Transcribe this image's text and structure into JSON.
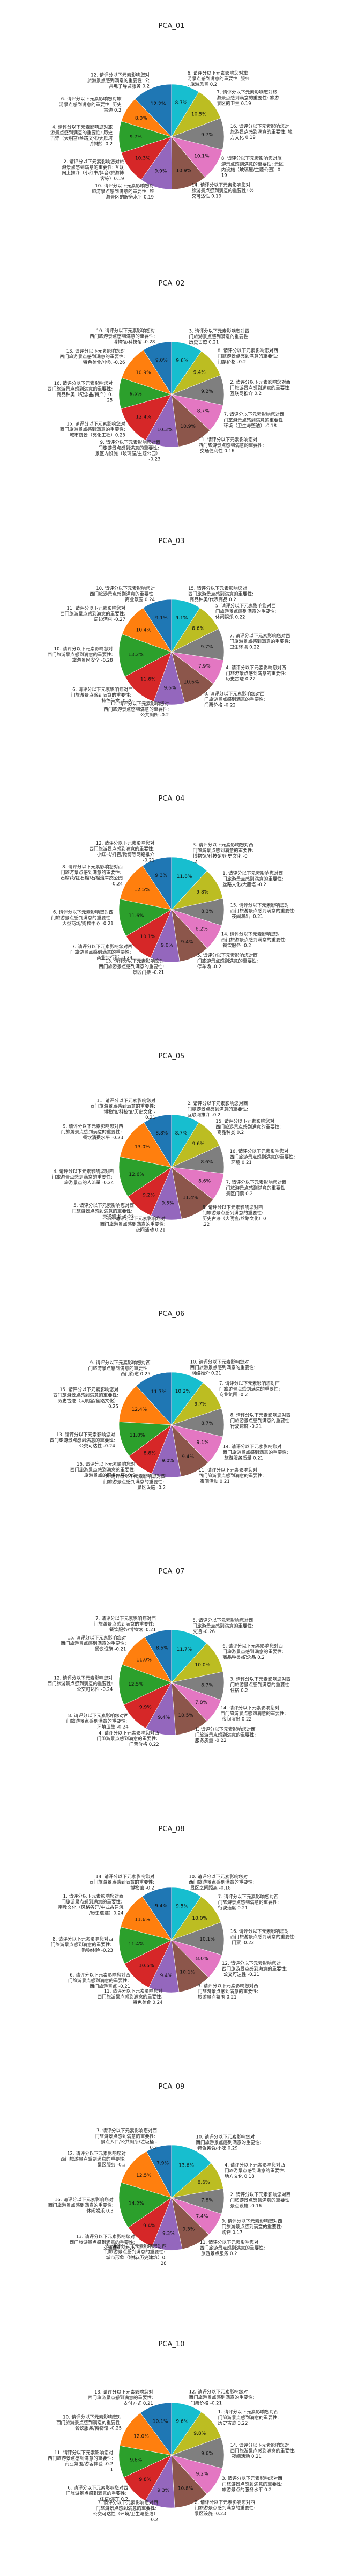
{
  "chart_data": [
    {
      "type": "pie",
      "title": "PCA_01",
      "values": [
        12.2,
        8.0,
        9.7,
        10.3,
        9.9,
        10.9,
        10.1,
        9.7,
        10.5,
        8.7
      ],
      "colors": [
        "#1f77b4",
        "#ff7f0e",
        "#2ca02c",
        "#d62728",
        "#9467bd",
        "#8c564b",
        "#e377c2",
        "#7f7f7f",
        "#bcbd22",
        "#17becf"
      ],
      "labels": [
        "12. 请评分以下元素影响您对旅游景点感到满意的重要性: 公共电子导览服务 0.2",
        "6. 请评分以下元素影响您对旅游景点感到满意的重要性: 历史古迹 0.2",
        "4. 请评分以下元素影响您对旅游景点感到满意的重要性: 历史古迹（大明宫/丝路文化/大雁塔/钟楼）0.2",
        "2. 请评分以下元素影响您对旅游景点感到满意的重要性: 互联网上推介（小红书/抖音/旅游博客等）0.19",
        "10. 请评分以下元素影响您对旅游景点感到满意的重要性: 旅游景区的服务水平 0.19",
        "14. 请评分以下元素影响您对旅游景点感到满意的重要性: 公交可达性 0.19",
        "8. 请评分以下元素影响您对旅游景点感到满意的重要性: 景区内设施（玻璃屋/主题公园）0.19",
        "16. 请评分以下元素影响您对旅游景点感到满意的重要性: 地方文化 0.19",
        "7. 请评分以下元素影响您对旅游景点感到满意的重要性: 旅游景区的卫生 0.19",
        "6. 请评分以下元素影响您对旅游景点感到满意的重要性: 服务, 旅游风景 0.2"
      ]
    },
    {
      "type": "pie",
      "title": "PCA_02",
      "values": [
        9.0,
        10.9,
        9.5,
        12.4,
        10.3,
        10.9,
        8.7,
        9.2,
        9.4,
        9.6
      ],
      "colors": [
        "#1f77b4",
        "#ff7f0e",
        "#2ca02c",
        "#d62728",
        "#9467bd",
        "#8c564b",
        "#e377c2",
        "#7f7f7f",
        "#bcbd22",
        "#17becf"
      ],
      "labels": [
        "10. 请评分以下元素影响您对西门旅游景点感到满意的重要性: 博物馆/科技馆 -0.28",
        "13. 请评分以下元素影响您对西门旅游景点感到满意的重要性: 特色美食/小吃 -0.26",
        "16. 请评分以下元素影响您对西门旅游景点感到满意的重要性: 商品种类（纪念品/特产）0.25",
        "15. 请评分以下元素影响您对西门旅游景点感到满意的重要性: 城市夜景（亮化工程）0.23",
        "9. 请评分以下元素影响您对西门旅游景点感到满意的重要性: 景区内设施（玻璃屋/主题公园）-0.23",
        "11. 请评分以下元素影响您对西门旅游景点感到满意的重要性: 交通便利性 0.16",
        "7. 请评分以下元素影响您对西门旅游景点感到满意的重要性: 环境（卫生与整洁）-0.18",
        "2. 请评分以下元素影响您对西门旅游景点感到满意的重要性: 互联网推介 0.2",
        "8. 请评分以下元素影响您对西门旅游景点感到满意的重要性: 门票价格 -0.2",
        "3. 请评分以下元素影响您对西门旅游景点感到满意的重要性: 历史古迹 0.21"
      ]
    },
    {
      "type": "pie",
      "title": "PCA_03",
      "values": [
        9.1,
        10.4,
        13.2,
        11.8,
        9.6,
        10.6,
        7.9,
        9.7,
        8.6,
        9.1
      ],
      "colors": [
        "#1f77b4",
        "#ff7f0e",
        "#2ca02c",
        "#d62728",
        "#9467bd",
        "#8c564b",
        "#e377c2",
        "#7f7f7f",
        "#bcbd22",
        "#17becf"
      ],
      "labels": [
        "10. 请评分以下元素影响您对西门旅游景点感到满意的重要性: 商业氛围 0.24",
        "11. 请评分以下元素影响您对西门旅游景点感到满意的重要性: 周边酒店 -0.27",
        "10. 请评分以下元素影响您对西门旅游景点感到满意的重要性: 旅游景区安全 -0.28",
        "6. 请评分以下元素影响您对西门旅游景点感到满意的重要性: 特色美食 -0.26",
        "12. 请评分以下元素影响您对西门旅游景点感到满意的重要性: 公共厕所 -0.2",
        "8. 请评分以下元素影响您对西门旅游景点感到满意的重要性: 门票价格 -0.22",
        "4. 请评分以下元素影响您对西门旅游景点感到满意的重要性: 历史古迹 0.22",
        "7. 请评分以下元素影响您对西门旅游景点感到满意的重要性: 卫生环境 0.22",
        "5. 请评分以下元素影响您对西门旅游景点感到满意的重要性: 休闲娱乐 0.22",
        "15. 请评分以下元素影响您对西门旅游景点感到满意的重要性: 商品种类/代表商品 0.2"
      ]
    },
    {
      "type": "pie",
      "title": "PCA_04",
      "values": [
        9.3,
        12.5,
        11.6,
        10.1,
        9.0,
        9.4,
        8.2,
        8.3,
        9.8,
        11.8
      ],
      "colors": [
        "#1f77b4",
        "#ff7f0e",
        "#2ca02c",
        "#d62728",
        "#9467bd",
        "#8c564b",
        "#e377c2",
        "#7f7f7f",
        "#bcbd22",
        "#17becf"
      ],
      "labels": [
        "12. 请评分以下元素影响您对西门旅游景点感到满意的重要性: 小红书/抖音/微博等网络推介 -0.21",
        "8. 请评分以下元素影响您对西门旅游景点感到满意的重要性: 石榴花/红石榴/石榴湾生态公园 -0.24",
        "6. 请评分以下元素影响您对西门旅游景点感到满意的重要性: 大型商场/购物中心 -0.21",
        "7. 请评分以下元素影响您对西门旅游景点感到满意的重要性: 商业步行街 -0.24",
        "13. 请评分以下元素影响您对西门旅游景点感到满意的重要性: 景区门票 -0.21",
        "5. 请评分以下元素影响您对西门旅游景点感到满意的重要性: 停车场 -0.2",
        "14. 请评分以下元素影响您对西门旅游景点感到满意的重要性: 餐饮服务 -0.2",
        "15. 请评分以下元素影响您对西门旅游景点感到满意的重要性: 夜间演出 -0.21",
        "1. 请评分以下元素影响您对西门旅游景点感到满意的重要性: 丝路文化/大雁塔 -0.2",
        "3. 请评分以下元素影响您对西门旅游景点感到满意的重要性: 博物馆/科技馆/历史文化 -0.2"
      ]
    },
    {
      "type": "pie",
      "title": "PCA_05",
      "values": [
        8.8,
        13.0,
        12.6,
        9.2,
        9.5,
        11.4,
        8.6,
        8.6,
        9.6,
        8.7
      ],
      "colors": [
        "#1f77b4",
        "#ff7f0e",
        "#2ca02c",
        "#d62728",
        "#9467bd",
        "#8c564b",
        "#e377c2",
        "#7f7f7f",
        "#bcbd22",
        "#17becf"
      ],
      "labels": [
        "11. 请评分以下元素影响您对西门旅游景点感到满意的重要性: 博物馆/科技馆/历史文化 -0.21",
        "9. 请评分以下元素影响您对西门旅游景点感到满意的重要性: 餐饮消费水平 -0.23",
        "4. 请评分以下元素影响您对西门旅游景点感到满意的重要性: 旅游景点的人流量 -0.24",
        "5. 请评分以下元素影响您对西门旅游景点感到满意的重要性: 交通拥堵 -0.23",
        "12. 请评分以下元素影响您对西门旅游景点感到满意的重要性: 夜间活动 0.21",
        "8. 请评分以下元素影响您对西门旅游景点感到满意的重要性: 历史古迹（大明宫/丝路文化）0.22",
        "7. 请评分以下元素影响您对西门旅游景点感到满意的重要性: 景区门票 0.2",
        "16. 请评分以下元素影响您对西门旅游景点感到满意的重要性: 环境 0.21",
        "15. 请评分以下元素影响您对西门旅游景点感到满意的重要性: 商品种类 0.2",
        "2. 请评分以下元素影响您对西门旅游景点感到满意的重要性: 互联网推介 -0.2"
      ]
    },
    {
      "type": "pie",
      "title": "PCA_06",
      "values": [
        11.7,
        12.4,
        11.0,
        8.8,
        9.0,
        9.4,
        9.1,
        8.7,
        9.7,
        10.2
      ],
      "colors": [
        "#1f77b4",
        "#ff7f0e",
        "#2ca02c",
        "#d62728",
        "#9467bd",
        "#8c564b",
        "#e377c2",
        "#7f7f7f",
        "#bcbd22",
        "#17becf"
      ],
      "labels": [
        "9. 请评分以下元素影响您对西门旅游景点感到满意的重要性: 西门街道 0.25",
        "15. 请评分以下元素影响您对西门旅游景点感到满意的重要性: 历史古迹（大明宫/丝路文化）0.25",
        "13. 请评分以下元素影响您对西门旅游景点感到满意的重要性: 公交可达性 -0.24",
        "16. 请评分以下元素影响您对西门旅游景点感到满意的重要性: 旅游景点的服务水平 -0.2",
        "3. 请评分以下元素影响您对西门旅游景点感到满意的重要性: 景区设施 -0.2",
        "11. 请评分以下元素影响您对西门旅游景点感到满意的重要性: 夜间活动 0.21",
        "14. 请评分以下元素影响您对西门旅游景点感到满意的重要性: 旅游服务质量 0.21",
        "8. 请评分以下元素影响您对西门旅游景点感到满意的重要性: 行驶速度 -0.21",
        "7. 请评分以下元素影响您对西门旅游景点感到满意的重要性: 商业氛围 -0.2",
        "10. 请评分以下元素影响您对西门旅游景点感到满意的重要性: 网络推介 0.21"
      ]
    },
    {
      "type": "pie",
      "title": "PCA_07",
      "values": [
        8.5,
        11.0,
        12.5,
        9.9,
        9.4,
        10.5,
        7.8,
        8.7,
        10.0,
        11.7
      ],
      "colors": [
        "#1f77b4",
        "#ff7f0e",
        "#2ca02c",
        "#d62728",
        "#9467bd",
        "#8c564b",
        "#e377c2",
        "#7f7f7f",
        "#bcbd22",
        "#17becf"
      ],
      "labels": [
        "7. 请评分以下元素影响您对西门旅游景点感到满意的重要性: 餐饮服务/博物馆 -0.21",
        "15. 请评分以下元素影响您对西门旅游景点感到满意的重要性: 餐饮设施 -0.21",
        "12. 请评分以下元素影响您对西门旅游景点感到满意的重要性: 公交可达性 -0.24",
        "8. 请评分以下元素影响您对西门旅游景点感到满意的重要性: 环境卫生 -0.24",
        "4. 请评分以下元素影响您对西门旅游景点感到满意的重要性: 门票价格 0.22",
        "1. 请评分以下元素影响您对西门旅游景点感到满意的重要性: 服务质量 -0.22",
        "14. 请评分以下元素影响您对西门旅游景点感到满意的重要性: 夜间演出 0.22",
        "3. 请评分以下元素影响您对西门旅游景点感到满意的重要性: 住宿 0.2",
        "6. 请评分以下元素影响您对西门旅游景点感到满意的重要性: 商品种类/纪念品 0.2",
        "5. 请评分以下元素影响您对西门旅游景点感到满意的重要性: 交通 -0.26"
      ]
    },
    {
      "type": "pie",
      "title": "PCA_08",
      "values": [
        9.4,
        11.6,
        11.4,
        10.5,
        9.4,
        10.1,
        8.0,
        10.1,
        10.0,
        9.5
      ],
      "colors": [
        "#1f77b4",
        "#ff7f0e",
        "#2ca02c",
        "#d62728",
        "#9467bd",
        "#8c564b",
        "#e377c2",
        "#7f7f7f",
        "#bcbd22",
        "#17becf"
      ],
      "labels": [
        "14. 请评分以下元素影响您对西门旅游景点感到满意的重要性: 博物馆 -0.2",
        "1. 请评分以下元素影响您对西门旅游景点感到满意的重要性: 宗教文化（风格各异/中式古建筑/历史遗迹）0.24",
        "8. 请评分以下元素影响您对西门旅游景点感到满意的重要性: 购物体验 -0.23",
        "6. 请评分以下元素影响您对西门旅游景点感到满意的重要性: 西门旅游景点 -0.21",
        "11. 请评分以下元素影响您对西门旅游景点感到满意的重要性: 特色美食 0.24",
        "3. 请评分以下元素影响您对西门旅游景点感到满意的重要性: 旅游景点氛围 0.21",
        "12. 请评分以下元素影响您对西门旅游景点感到满意的重要性: 公交可达性 -0.21",
        "16. 请评分以下元素影响您对西门旅游景点感到满意的重要性: 门票 -0.22",
        "7. 请评分以下元素影响您对西门旅游景点感到满意的重要性: 行驶速度 0.21",
        "10. 请评分以下元素影响您对西门旅游景点感到满意的重要性: 景区之间距离 -0.18"
      ]
    },
    {
      "type": "pie",
      "title": "PCA_09",
      "values": [
        7.9,
        12.5,
        14.2,
        9.4,
        9.3,
        9.3,
        7.4,
        7.8,
        8.6,
        13.6
      ],
      "colors": [
        "#1f77b4",
        "#ff7f0e",
        "#2ca02c",
        "#d62728",
        "#9467bd",
        "#8c564b",
        "#e377c2",
        "#7f7f7f",
        "#bcbd22",
        "#17becf"
      ],
      "labels": [
        "7. 请评分以下元素影响您对西门旅游景点感到满意的重要性: 景点入口/公共厕所/垃圾桶 -0.2",
        "12. 请评分以下元素影响您对西门旅游景点感到满意的重要性: 景区服务 -0.3",
        "16. 请评分以下元素影响您对西门旅游景点感到满意的重要性: 休闲娱乐 0.3",
        "13. 请评分以下元素影响您对西门旅游景点感到满意的重要性: 交通便利 -0.26",
        "5. 请评分以下元素影响您对西门旅游景点感到满意的重要性: 城市形象（地标/历史建筑）0.28",
        "11. 请评分以下元素影响您对西门旅游景点感到满意的重要性: 旅游景点服务 0.2",
        "9. 请评分以下元素影响您对西门旅游景点感到满意的重要性: 购物 0.17",
        "2. 请评分以下元素影响您对西门旅游景点感到满意的重要性: 景点设施 -0.16",
        "4. 请评分以下元素影响您对西门旅游景点感到满意的重要性: 地方文化 0.18",
        "10. 请评分以下元素影响您对西门旅游景点感到满意的重要性: 特色美食/小吃 0.29"
      ]
    },
    {
      "type": "pie",
      "title": "PCA_10",
      "values": [
        10.1,
        12.0,
        9.8,
        9.8,
        9.3,
        10.8,
        9.2,
        9.6,
        9.8,
        9.6
      ],
      "colors": [
        "#1f77b4",
        "#ff7f0e",
        "#2ca02c",
        "#d62728",
        "#9467bd",
        "#8c564b",
        "#e377c2",
        "#7f7f7f",
        "#bcbd22",
        "#17becf"
      ],
      "labels": [
        "13. 请评分以下元素影响您对西门旅游景点感到满意的重要性: 支付方式 0.21",
        "10. 请评分以下元素影响您对西门旅游景点感到满意的重要性: 餐饮服务/博物馆 -0.25",
        "11. 请评分以下元素影响您对西门旅游景点感到满意的重要性: 商业氛围/游客体验 -0.21",
        "6. 请评分以下元素影响您对西门旅游景点感到满意的重要性: 住宿/停车 0.2",
        "7. 请评分以下元素影响您对西门旅游景点感到满意的重要性: 公交可达性（环境/卫生与整洁）-0.2",
        "2. 请评分以下元素影响您对西门旅游景点感到满意的重要性: 景区设施 -0.23",
        "3. 请评分以下元素影响您对西门旅游景点感到满意的重要性: 旅游景点的服务水平 0.2",
        "14. 请评分以下元素影响您对西门旅游景点感到满意的重要性: 夜间活动 0.21",
        "1. 请评分以下元素影响您对西门旅游景点感到满意的重要性: 历史古迹 0.22",
        "12. 请评分以下元素影响您对西门旅游景点感到满意的重要性: 门票价格 -0.21"
      ]
    }
  ]
}
